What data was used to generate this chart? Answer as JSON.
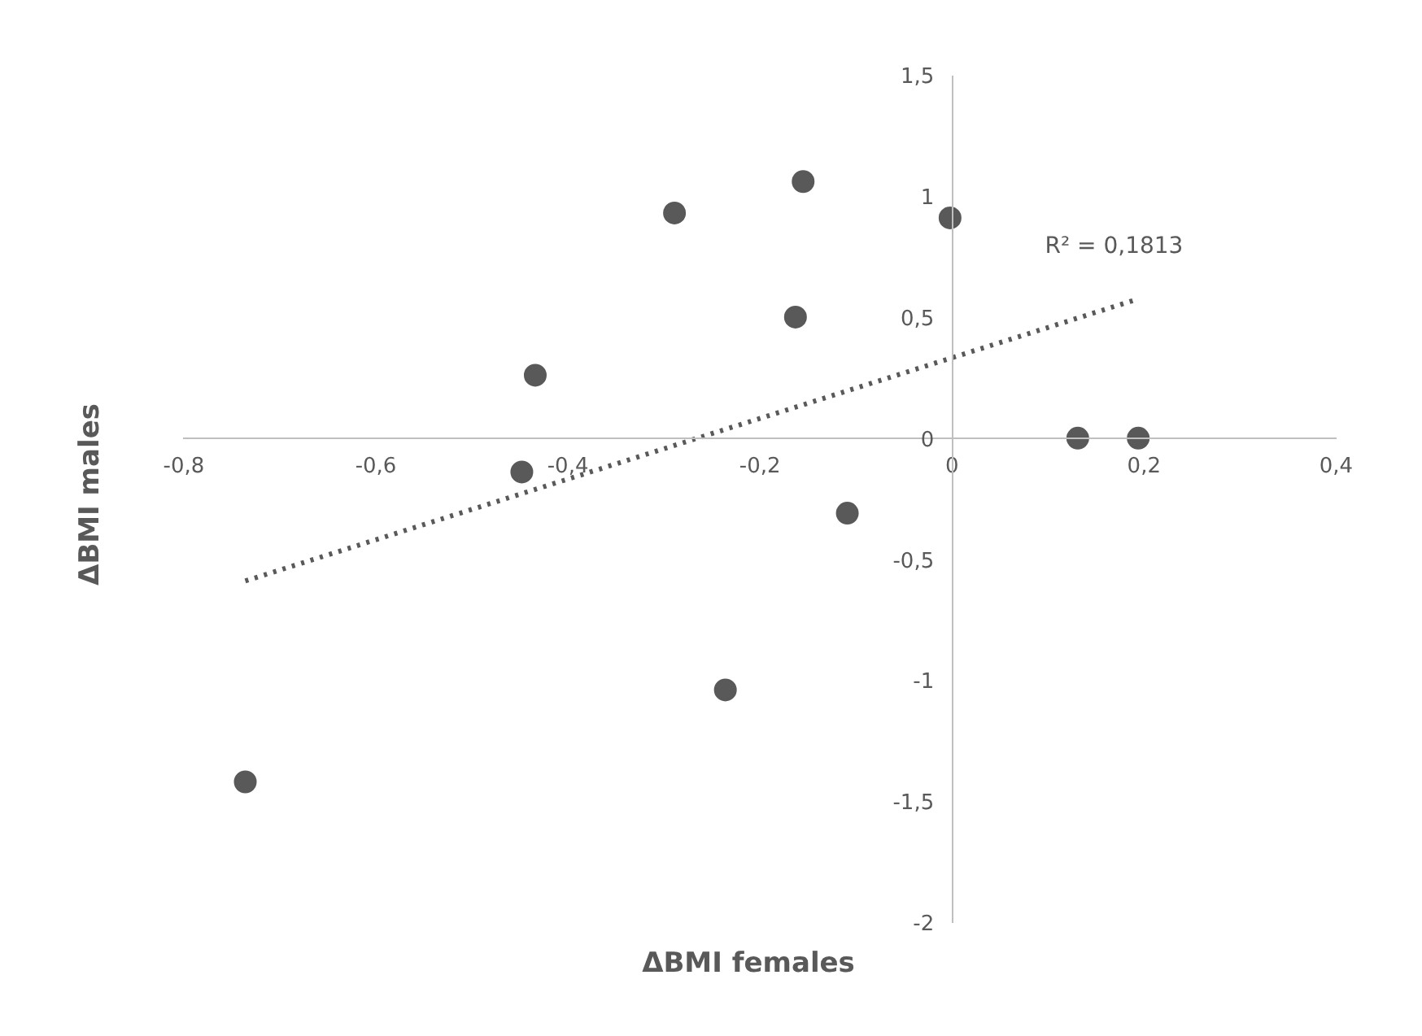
{
  "chart_data": {
    "type": "scatter",
    "xlabel": "ΔBMI females",
    "ylabel": "ΔBMI males",
    "xlim": [
      -0.8,
      0.4
    ],
    "ylim": [
      -2,
      1.5
    ],
    "xticks": [
      {
        "value": -0.8,
        "label": "-0,8"
      },
      {
        "value": -0.6,
        "label": "-0,6"
      },
      {
        "value": -0.4,
        "label": "-0,4"
      },
      {
        "value": -0.2,
        "label": "-0,2"
      },
      0,
      {
        "value": 0.2,
        "label": "0,2"
      },
      {
        "value": 0.4,
        "label": "0,4"
      }
    ],
    "yticks": [
      -2,
      {
        "value": -1.5,
        "label": "-1,5"
      },
      -1,
      {
        "value": -0.5,
        "label": "-0,5"
      },
      0,
      {
        "value": 0.5,
        "label": "0,5"
      },
      1,
      {
        "value": 1.5,
        "label": "1,5"
      }
    ],
    "grid": false,
    "annotations": [
      "R² = 0,1813"
    ],
    "series": [
      {
        "marker": "circle",
        "color": "#595959",
        "x": [
          -0.736,
          -0.448,
          -0.434,
          -0.289,
          -0.236,
          -0.163,
          -0.155,
          -0.109,
          -0.002,
          0.131,
          0.194
        ],
        "values": [
          -1.42,
          -0.14,
          0.26,
          0.93,
          -1.04,
          0.5,
          1.06,
          -0.31,
          0.91,
          0,
          0
        ]
      },
      {
        "type": "line",
        "line_style": "dotted",
        "color": "#595959",
        "x": [
          -0.736,
          0.19
        ],
        "values": [
          -0.59,
          0.57
        ]
      }
    ]
  }
}
